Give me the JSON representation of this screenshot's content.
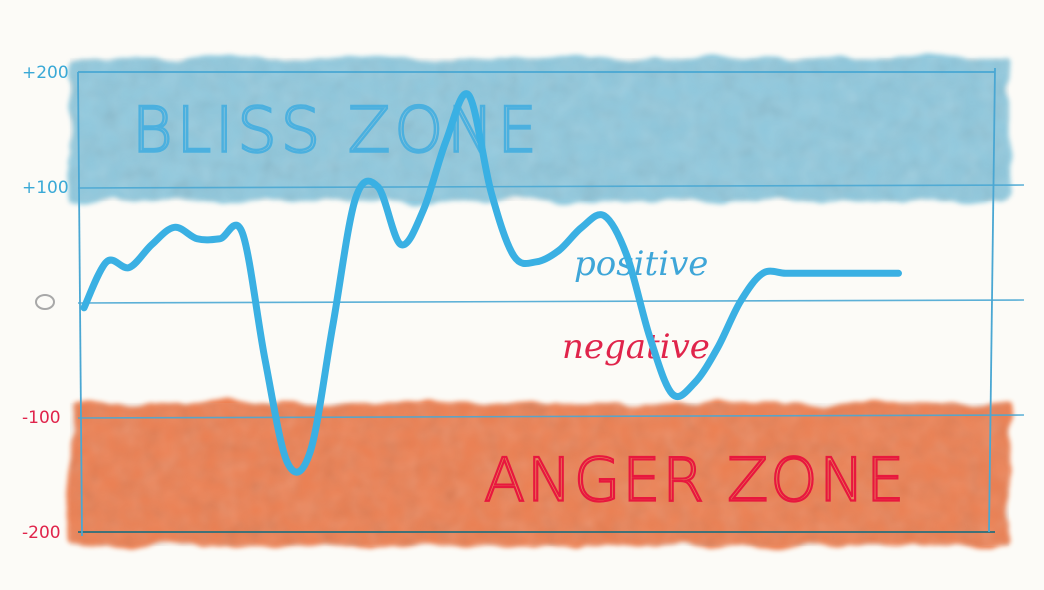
{
  "chart_data": {
    "type": "line",
    "ylim": [
      -200,
      200
    ],
    "yticks": [
      {
        "value": 200,
        "label": "+200",
        "color": "#3aa9d6"
      },
      {
        "value": 100,
        "label": "+100",
        "color": "#3aa9d6"
      },
      {
        "value": 0,
        "label": "0",
        "color": "#a8a8a8"
      },
      {
        "value": -100,
        "label": "-100",
        "color": "#e0244b"
      },
      {
        "value": -200,
        "label": "-200",
        "color": "#e0244b"
      }
    ],
    "zones": {
      "bliss": {
        "label": "BLISS ZONE",
        "range": [
          100,
          200
        ],
        "fill": "#7cc0d9",
        "text_color": "#4bb0df"
      },
      "anger": {
        "label": "ANGER ZONE",
        "range": [
          -200,
          -100
        ],
        "fill": "#ea6a34",
        "text_color": "#e8173e"
      }
    },
    "annotations": {
      "positive": {
        "text": "positive",
        "color": "#3fa6d8"
      },
      "negative": {
        "text": "negative",
        "color": "#e0244b"
      }
    },
    "series": [
      {
        "color": "#3ab0e3",
        "x": [
          0,
          2.5,
          5,
          7.5,
          10,
          12.5,
          15,
          17.5,
          20,
          22.5,
          25,
          27.5,
          30,
          32.5,
          35,
          37.5,
          40,
          42.5,
          45,
          47.5,
          50,
          52.5,
          55,
          57.5,
          60,
          62.5,
          65,
          67.5,
          70,
          72.5,
          75,
          77.5,
          80,
          82.5,
          85,
          87.5,
          90,
          92.5,
          95,
          97.5,
          100
        ],
        "y": [
          -5,
          35,
          30,
          50,
          65,
          55,
          55,
          60,
          -50,
          -140,
          -130,
          -20,
          90,
          100,
          50,
          80,
          140,
          180,
          95,
          40,
          35,
          45,
          65,
          75,
          40,
          -30,
          -80,
          -70,
          -40,
          0,
          25,
          25,
          25,
          25,
          25,
          25,
          25,
          25,
          25,
          25,
          25
        ]
      }
    ]
  }
}
